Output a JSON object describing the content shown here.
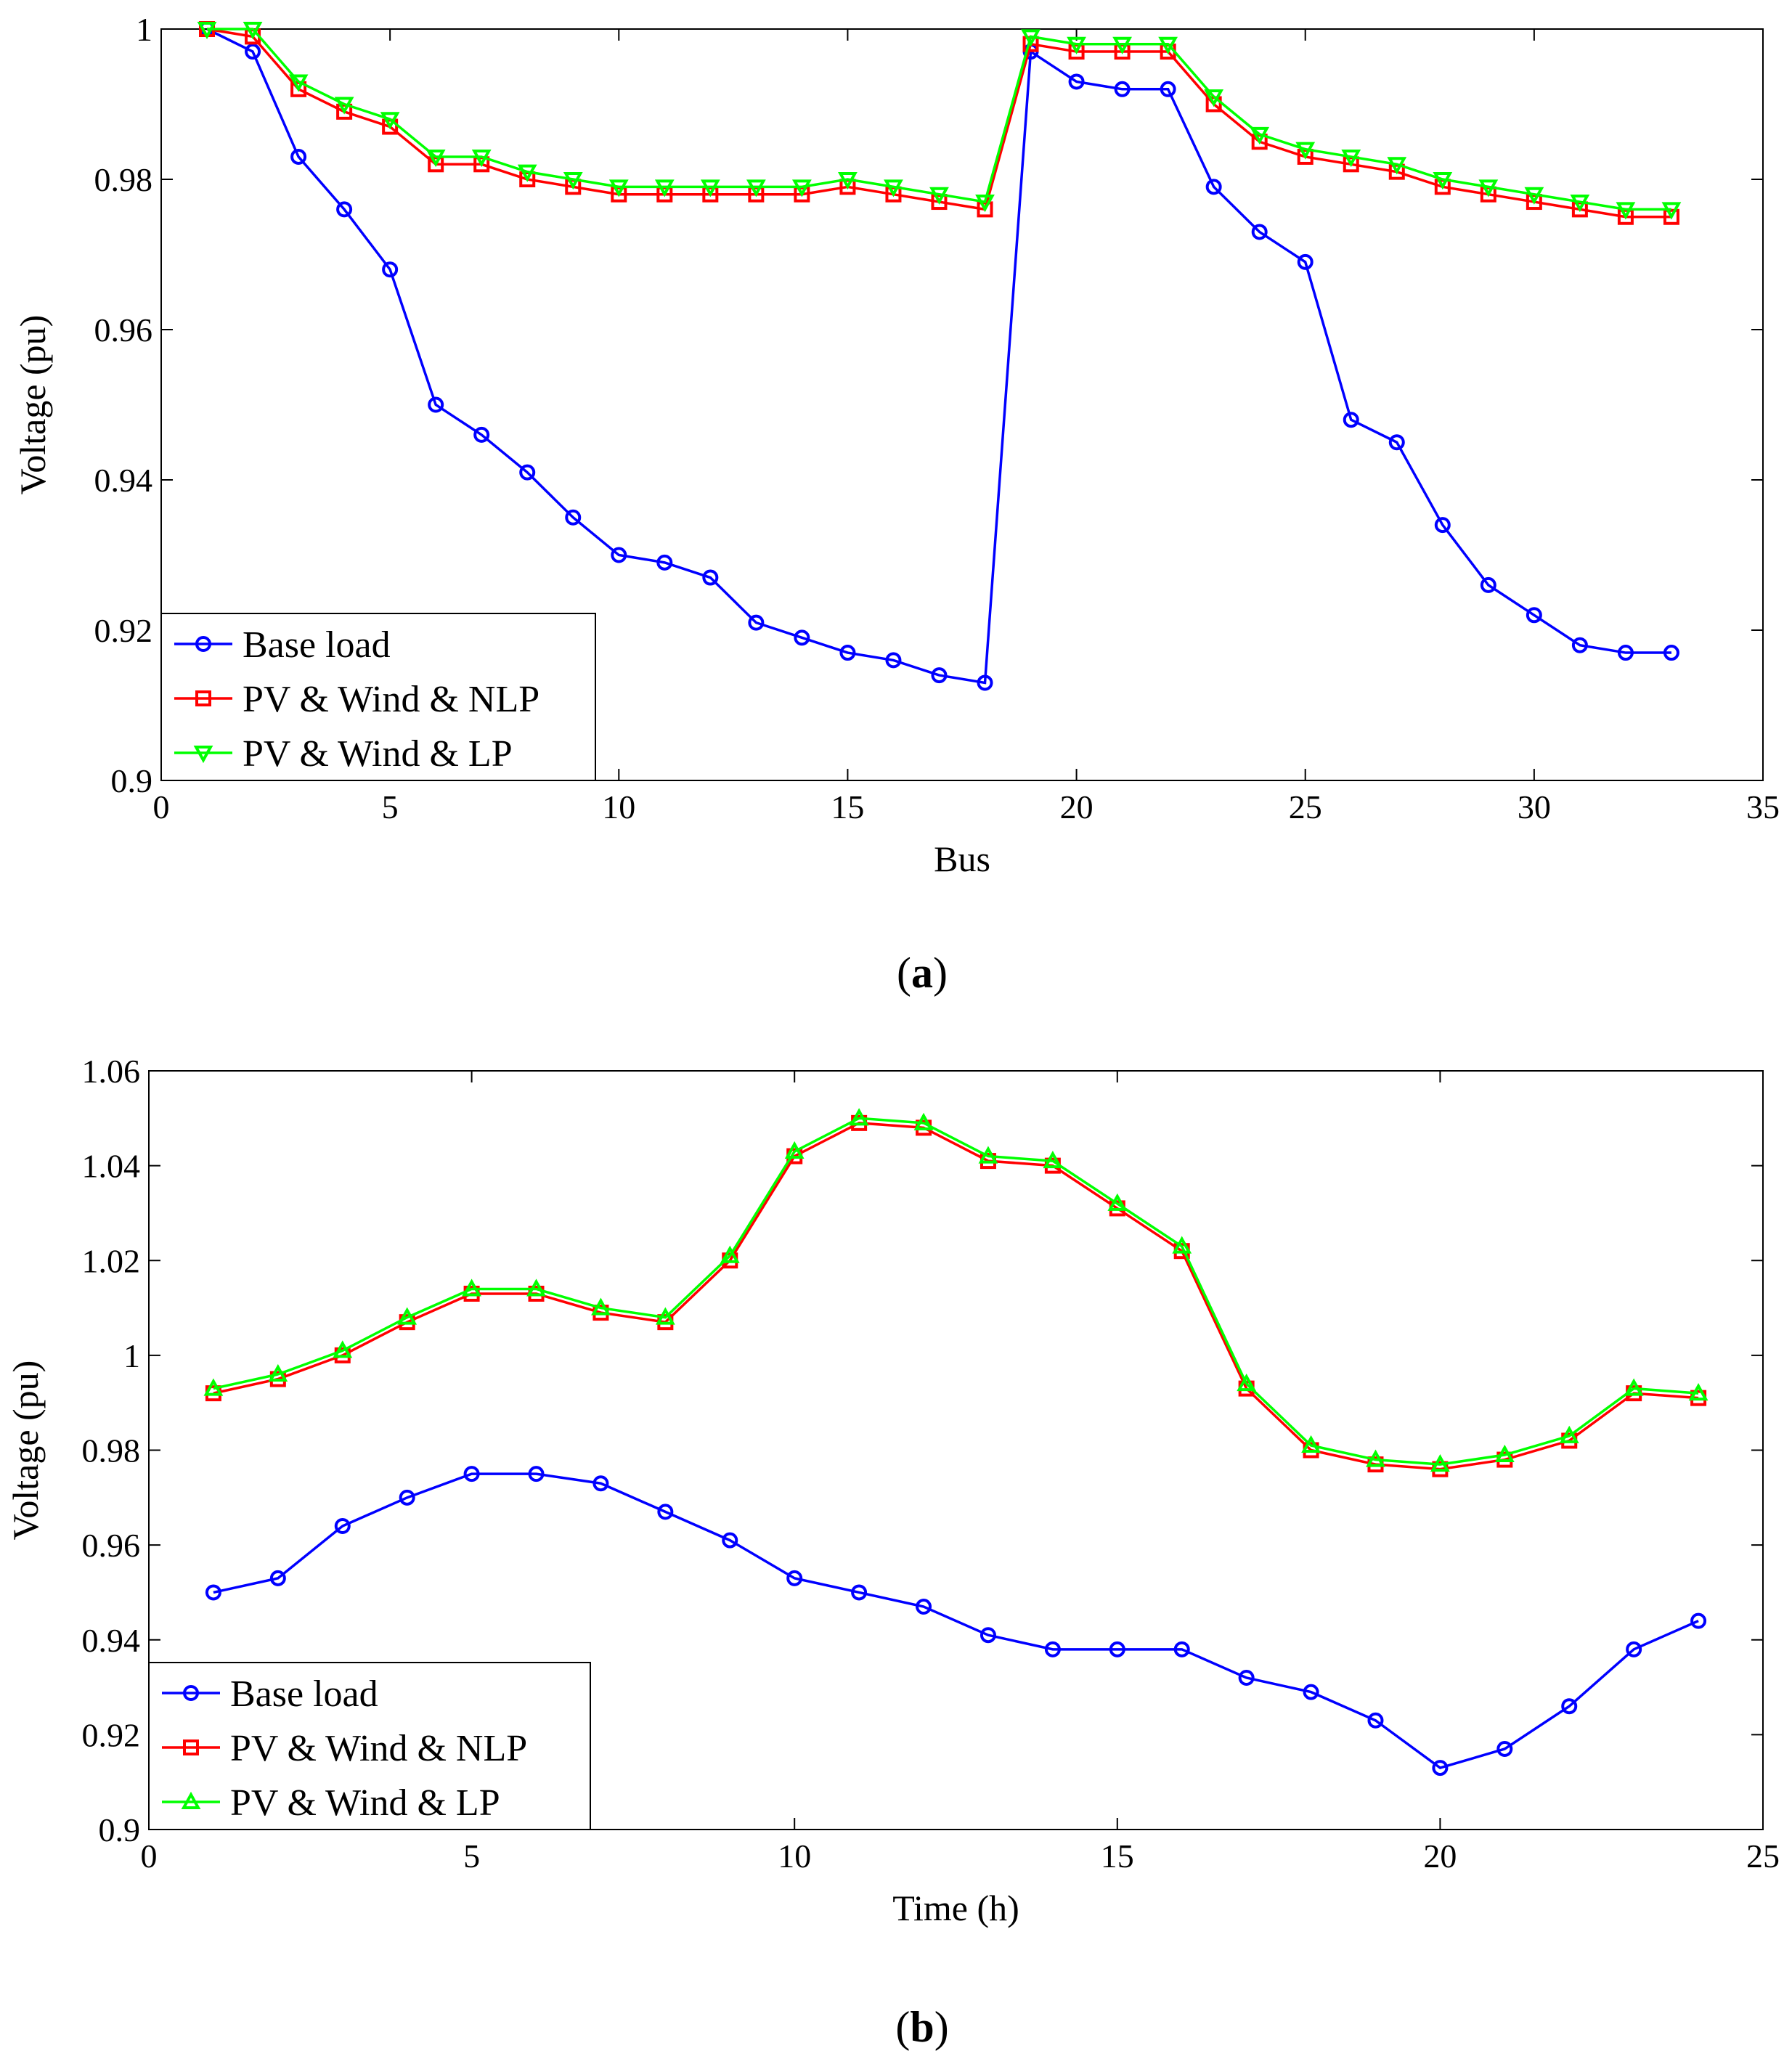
{
  "chart_data": [
    {
      "type": "line",
      "panel_label": {
        "open": "(",
        "letter": "a",
        "close": ")"
      },
      "xlabel": "Bus",
      "ylabel": "Voltage (pu)",
      "xlim": [
        0,
        35
      ],
      "ylim": [
        0.9,
        1.0
      ],
      "xticks": [
        0,
        5,
        10,
        15,
        20,
        25,
        30,
        35
      ],
      "yticks": [
        0.9,
        0.92,
        0.94,
        0.96,
        0.98,
        1
      ],
      "xtick_labels": [
        "0",
        "5",
        "10",
        "15",
        "20",
        "25",
        "30",
        "35"
      ],
      "ytick_labels": [
        "0.9",
        "0.92",
        "0.94",
        "0.96",
        "0.98",
        "1"
      ],
      "grid": false,
      "legend_position": "bottom-left",
      "x": [
        1,
        2,
        3,
        4,
        5,
        6,
        7,
        8,
        9,
        10,
        11,
        12,
        13,
        14,
        15,
        16,
        17,
        18,
        19,
        20,
        21,
        22,
        23,
        24,
        25,
        26,
        27,
        28,
        29,
        30,
        31,
        32,
        33
      ],
      "series": [
        {
          "name": "Base load",
          "color": "#0000ff",
          "marker": "circle",
          "values": [
            1.0,
            0.997,
            0.983,
            0.976,
            0.968,
            0.95,
            0.946,
            0.941,
            0.935,
            0.93,
            0.929,
            0.927,
            0.921,
            0.919,
            0.917,
            0.916,
            0.914,
            0.913,
            0.997,
            0.993,
            0.992,
            0.992,
            0.979,
            0.973,
            0.969,
            0.948,
            0.945,
            0.934,
            0.926,
            0.922,
            0.918,
            0.917,
            0.917
          ]
        },
        {
          "name": "PV & Wind & NLP",
          "color": "#ff0000",
          "marker": "square",
          "values": [
            1.0,
            0.999,
            0.992,
            0.989,
            0.987,
            0.982,
            0.982,
            0.98,
            0.979,
            0.978,
            0.978,
            0.978,
            0.978,
            0.978,
            0.979,
            0.978,
            0.977,
            0.976,
            0.998,
            0.997,
            0.997,
            0.997,
            0.99,
            0.985,
            0.983,
            0.982,
            0.981,
            0.979,
            0.978,
            0.977,
            0.976,
            0.975,
            0.975
          ]
        },
        {
          "name": "PV & Wind & LP",
          "color": "#00ff00",
          "marker": "triangle-down",
          "values": [
            1.0,
            1.0,
            0.993,
            0.99,
            0.988,
            0.983,
            0.983,
            0.981,
            0.98,
            0.979,
            0.979,
            0.979,
            0.979,
            0.979,
            0.98,
            0.979,
            0.978,
            0.977,
            0.999,
            0.998,
            0.998,
            0.998,
            0.991,
            0.986,
            0.984,
            0.983,
            0.982,
            0.98,
            0.979,
            0.978,
            0.977,
            0.976,
            0.976
          ]
        }
      ]
    },
    {
      "type": "line",
      "panel_label": {
        "open": "(",
        "letter": "b",
        "close": ")"
      },
      "xlabel": "Time (h)",
      "ylabel": "Voltage (pu)",
      "xlim": [
        0,
        25
      ],
      "ylim": [
        0.9,
        1.06
      ],
      "xticks": [
        0,
        5,
        10,
        15,
        20,
        25
      ],
      "yticks": [
        0.9,
        0.92,
        0.94,
        0.96,
        0.98,
        1,
        1.02,
        1.04,
        1.06
      ],
      "xtick_labels": [
        "0",
        "5",
        "10",
        "15",
        "20",
        "25"
      ],
      "ytick_labels": [
        "0.9",
        "0.92",
        "0.94",
        "0.96",
        "0.98",
        "1",
        "1.02",
        "1.04",
        "1.06"
      ],
      "grid": false,
      "legend_position": "bottom-left",
      "x": [
        1,
        2,
        3,
        4,
        5,
        6,
        7,
        8,
        9,
        10,
        11,
        12,
        13,
        14,
        15,
        16,
        17,
        18,
        19,
        20,
        21,
        22,
        23,
        24
      ],
      "series": [
        {
          "name": "Base load",
          "color": "#0000ff",
          "marker": "circle",
          "values": [
            0.95,
            0.953,
            0.964,
            0.97,
            0.975,
            0.975,
            0.973,
            0.967,
            0.961,
            0.953,
            0.95,
            0.947,
            0.941,
            0.938,
            0.938,
            0.938,
            0.932,
            0.929,
            0.923,
            0.913,
            0.917,
            0.926,
            0.938,
            0.944
          ]
        },
        {
          "name": "PV & Wind & NLP",
          "color": "#ff0000",
          "marker": "square",
          "values": [
            0.992,
            0.995,
            1.0,
            1.007,
            1.013,
            1.013,
            1.009,
            1.007,
            1.02,
            1.042,
            1.049,
            1.048,
            1.041,
            1.04,
            1.031,
            1.022,
            0.993,
            0.98,
            0.977,
            0.976,
            0.978,
            0.982,
            0.992,
            0.991
          ]
        },
        {
          "name": "PV & Wind & LP",
          "color": "#00ff00",
          "marker": "triangle-up",
          "values": [
            0.993,
            0.996,
            1.001,
            1.008,
            1.014,
            1.014,
            1.01,
            1.008,
            1.021,
            1.043,
            1.05,
            1.049,
            1.042,
            1.041,
            1.032,
            1.023,
            0.994,
            0.981,
            0.978,
            0.977,
            0.979,
            0.983,
            0.993,
            0.992
          ]
        }
      ]
    }
  ]
}
